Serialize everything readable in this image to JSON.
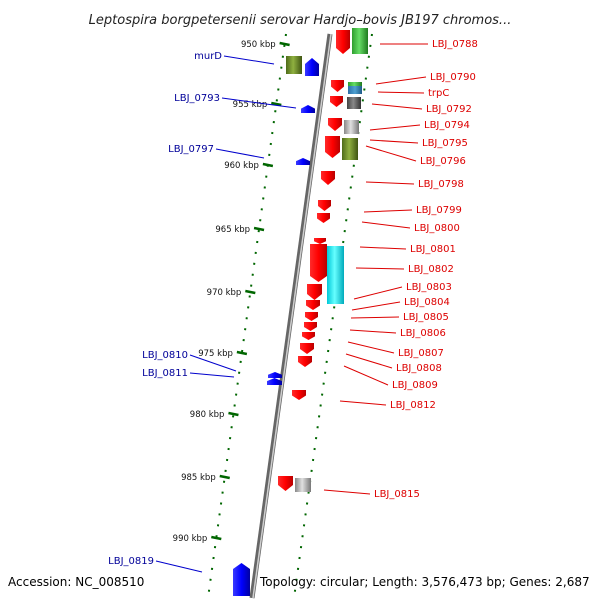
{
  "title": "Leptospira borgpetersenii serovar Hardjo–bovis JB197 chromos...",
  "footer": {
    "accession": "Accession: NC_008510",
    "topology": "Topology: circular; Length: 3,576,473 bp; Genes: 2,687"
  },
  "colors": {
    "reverse_gene": "#ff0000",
    "forward_gene": "#0000ff",
    "reverse_label": "#dd0000",
    "forward_label": "#000099",
    "tick": "#006600",
    "backbone": "#888888"
  },
  "ticks": [
    {
      "kbp": 950,
      "label": "950 kbp"
    },
    {
      "kbp": 955,
      "label": "955 kbp"
    },
    {
      "kbp": 960,
      "label": "960 kbp"
    },
    {
      "kbp": 965,
      "label": "965 kbp"
    },
    {
      "kbp": 970,
      "label": "970 kbp"
    },
    {
      "kbp": 975,
      "label": "975 kbp"
    },
    {
      "kbp": 980,
      "label": "980 kbp"
    },
    {
      "kbp": 985,
      "label": "985 kbp"
    },
    {
      "kbp": 990,
      "label": "990 kbp"
    }
  ],
  "right_labels": [
    {
      "text": "LBJ_0788"
    },
    {
      "text": "LBJ_0790"
    },
    {
      "text": "trpC"
    },
    {
      "text": "LBJ_0792"
    },
    {
      "text": "LBJ_0794"
    },
    {
      "text": "LBJ_0795"
    },
    {
      "text": "LBJ_0796"
    },
    {
      "text": "LBJ_0798"
    },
    {
      "text": "LBJ_0799"
    },
    {
      "text": "LBJ_0800"
    },
    {
      "text": "LBJ_0801"
    },
    {
      "text": "LBJ_0802"
    },
    {
      "text": "LBJ_0803"
    },
    {
      "text": "LBJ_0804"
    },
    {
      "text": "LBJ_0805"
    },
    {
      "text": "LBJ_0806"
    },
    {
      "text": "LBJ_0807"
    },
    {
      "text": "LBJ_0808"
    },
    {
      "text": "LBJ_0809"
    },
    {
      "text": "LBJ_0812"
    },
    {
      "text": "LBJ_0815"
    }
  ],
  "left_labels": [
    {
      "text": "murD"
    },
    {
      "text": "LBJ_0793"
    },
    {
      "text": "LBJ_0797"
    },
    {
      "text": "LBJ_0810"
    },
    {
      "text": "LBJ_0811"
    },
    {
      "text": "LBJ_0819"
    }
  ]
}
